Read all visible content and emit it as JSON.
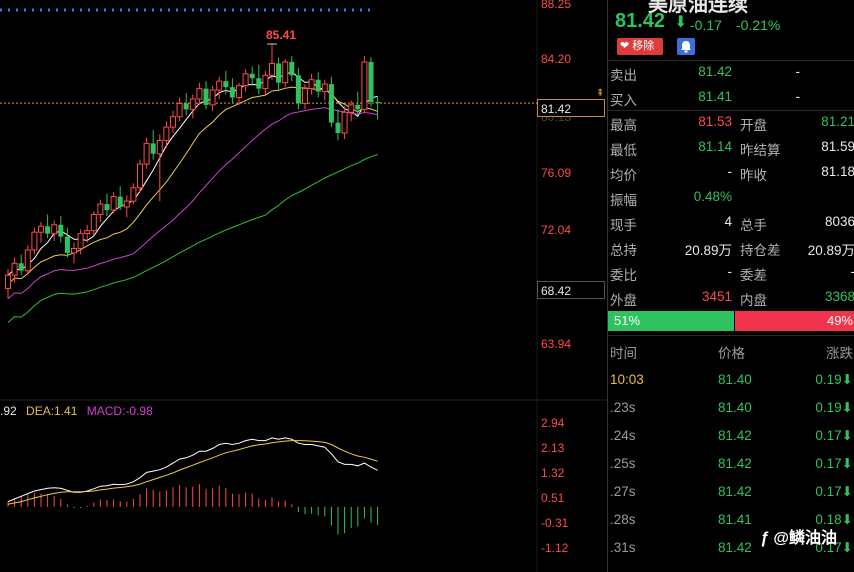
{
  "chart_data": {
    "type": "candlestick",
    "price_axis_ticks": [
      "88.25",
      "84.20",
      "80.15",
      "76.09",
      "72.04",
      "63.94"
    ],
    "price_axis_bottom_box": "68.42",
    "current_price_box": "81.42",
    "high_annotation": "85.41",
    "ylim": [
      61.5,
      88.25
    ],
    "candles": [
      {
        "o": 68.9,
        "h": 70.2,
        "l": 68.2,
        "c": 69.8
      },
      {
        "o": 69.8,
        "h": 71.0,
        "l": 69.3,
        "c": 70.6
      },
      {
        "o": 70.6,
        "h": 71.2,
        "l": 69.8,
        "c": 70.1
      },
      {
        "o": 70.1,
        "h": 71.8,
        "l": 69.9,
        "c": 71.5
      },
      {
        "o": 71.5,
        "h": 73.0,
        "l": 71.2,
        "c": 72.7
      },
      {
        "o": 72.7,
        "h": 73.4,
        "l": 72.0,
        "c": 73.1
      },
      {
        "o": 73.1,
        "h": 73.9,
        "l": 72.3,
        "c": 72.6
      },
      {
        "o": 72.6,
        "h": 73.5,
        "l": 72.1,
        "c": 73.2
      },
      {
        "o": 73.2,
        "h": 73.8,
        "l": 72.0,
        "c": 72.4
      },
      {
        "o": 72.4,
        "h": 73.0,
        "l": 71.0,
        "c": 71.3
      },
      {
        "o": 71.3,
        "h": 72.0,
        "l": 70.6,
        "c": 71.6
      },
      {
        "o": 71.6,
        "h": 72.9,
        "l": 71.2,
        "c": 72.6
      },
      {
        "o": 72.6,
        "h": 73.2,
        "l": 72.0,
        "c": 72.8
      },
      {
        "o": 72.8,
        "h": 74.1,
        "l": 72.5,
        "c": 73.9
      },
      {
        "o": 73.9,
        "h": 74.9,
        "l": 73.4,
        "c": 74.6
      },
      {
        "o": 74.6,
        "h": 75.3,
        "l": 73.8,
        "c": 74.2
      },
      {
        "o": 74.2,
        "h": 75.4,
        "l": 74.0,
        "c": 75.1
      },
      {
        "o": 75.1,
        "h": 75.8,
        "l": 74.2,
        "c": 74.4
      },
      {
        "o": 74.4,
        "h": 75.2,
        "l": 73.7,
        "c": 74.8
      },
      {
        "o": 74.8,
        "h": 76.0,
        "l": 74.6,
        "c": 75.7
      },
      {
        "o": 75.7,
        "h": 77.6,
        "l": 75.4,
        "c": 77.3
      },
      {
        "o": 77.3,
        "h": 79.1,
        "l": 77.0,
        "c": 78.7
      },
      {
        "o": 78.7,
        "h": 79.6,
        "l": 77.6,
        "c": 78.0
      },
      {
        "o": 78.0,
        "h": 79.3,
        "l": 74.8,
        "c": 78.9
      },
      {
        "o": 78.9,
        "h": 80.2,
        "l": 78.4,
        "c": 79.8
      },
      {
        "o": 79.8,
        "h": 80.9,
        "l": 79.4,
        "c": 80.5
      },
      {
        "o": 80.5,
        "h": 81.8,
        "l": 80.2,
        "c": 81.4
      },
      {
        "o": 81.4,
        "h": 82.1,
        "l": 80.6,
        "c": 81.0
      },
      {
        "o": 81.0,
        "h": 82.0,
        "l": 80.4,
        "c": 81.7
      },
      {
        "o": 81.7,
        "h": 82.8,
        "l": 81.3,
        "c": 82.4
      },
      {
        "o": 82.4,
        "h": 82.9,
        "l": 81.0,
        "c": 81.3
      },
      {
        "o": 81.3,
        "h": 82.6,
        "l": 80.9,
        "c": 82.3
      },
      {
        "o": 82.3,
        "h": 83.2,
        "l": 81.7,
        "c": 82.9
      },
      {
        "o": 82.9,
        "h": 83.6,
        "l": 82.0,
        "c": 82.5
      },
      {
        "o": 82.5,
        "h": 83.1,
        "l": 81.4,
        "c": 81.8
      },
      {
        "o": 81.8,
        "h": 82.8,
        "l": 81.3,
        "c": 82.6
      },
      {
        "o": 82.6,
        "h": 83.7,
        "l": 82.2,
        "c": 83.4
      },
      {
        "o": 83.4,
        "h": 83.9,
        "l": 82.6,
        "c": 83.1
      },
      {
        "o": 83.1,
        "h": 84.0,
        "l": 82.0,
        "c": 82.4
      },
      {
        "o": 82.4,
        "h": 83.6,
        "l": 81.9,
        "c": 83.3
      },
      {
        "o": 83.3,
        "h": 85.41,
        "l": 83.0,
        "c": 84.1
      },
      {
        "o": 84.1,
        "h": 84.5,
        "l": 82.3,
        "c": 82.8
      },
      {
        "o": 82.8,
        "h": 84.4,
        "l": 82.5,
        "c": 84.2
      },
      {
        "o": 84.2,
        "h": 84.6,
        "l": 82.9,
        "c": 83.3
      },
      {
        "o": 83.3,
        "h": 83.8,
        "l": 81.0,
        "c": 81.4
      },
      {
        "o": 81.4,
        "h": 82.7,
        "l": 81.0,
        "c": 82.4
      },
      {
        "o": 82.4,
        "h": 83.4,
        "l": 82.0,
        "c": 83.0
      },
      {
        "o": 83.0,
        "h": 83.5,
        "l": 81.8,
        "c": 82.2
      },
      {
        "o": 82.2,
        "h": 83.0,
        "l": 81.6,
        "c": 82.7
      },
      {
        "o": 82.7,
        "h": 83.2,
        "l": 79.8,
        "c": 80.1
      },
      {
        "o": 80.1,
        "h": 81.0,
        "l": 78.9,
        "c": 79.4
      },
      {
        "o": 79.4,
        "h": 81.2,
        "l": 79.0,
        "c": 80.8
      },
      {
        "o": 80.8,
        "h": 81.6,
        "l": 80.2,
        "c": 81.3
      },
      {
        "o": 81.3,
        "h": 82.2,
        "l": 80.6,
        "c": 81.0
      },
      {
        "o": 81.0,
        "h": 84.6,
        "l": 80.8,
        "c": 84.2
      },
      {
        "o": 84.2,
        "h": 84.5,
        "l": 81.2,
        "c": 81.5
      },
      {
        "o": 81.5,
        "h": 81.9,
        "l": 80.3,
        "c": 81.42
      }
    ],
    "macd_axis_ticks": [
      "2.94",
      "2.13",
      "1.32",
      "0.51",
      "-0.31",
      "-1.12"
    ],
    "macd_ylim": [
      -1.55,
      3.2
    ],
    "macd_legend": {
      "dif": ".92",
      "dea": "DEA:1.41",
      "macd": "MACD:-0.98"
    },
    "dif": [
      0.2,
      0.3,
      0.4,
      0.5,
      0.6,
      0.65,
      0.7,
      0.72,
      0.7,
      0.62,
      0.55,
      0.55,
      0.6,
      0.68,
      0.78,
      0.8,
      0.85,
      0.84,
      0.86,
      0.95,
      1.1,
      1.3,
      1.35,
      1.4,
      1.5,
      1.65,
      1.8,
      1.85,
      1.95,
      2.1,
      2.1,
      2.2,
      2.35,
      2.4,
      2.35,
      2.4,
      2.5,
      2.55,
      2.5,
      2.5,
      2.6,
      2.55,
      2.6,
      2.55,
      2.4,
      2.35,
      2.35,
      2.3,
      2.25,
      2.0,
      1.7,
      1.6,
      1.6,
      1.55,
      1.65,
      1.5,
      1.38
    ],
    "dea": [
      0.1,
      0.15,
      0.2,
      0.27,
      0.34,
      0.4,
      0.46,
      0.51,
      0.55,
      0.57,
      0.57,
      0.57,
      0.58,
      0.6,
      0.64,
      0.67,
      0.71,
      0.73,
      0.76,
      0.8,
      0.86,
      0.95,
      1.03,
      1.11,
      1.19,
      1.28,
      1.39,
      1.48,
      1.57,
      1.67,
      1.76,
      1.85,
      1.95,
      2.04,
      2.1,
      2.16,
      2.23,
      2.3,
      2.34,
      2.37,
      2.42,
      2.45,
      2.48,
      2.5,
      2.5,
      2.49,
      2.48,
      2.46,
      2.43,
      2.35,
      2.22,
      2.1,
      2.0,
      1.92,
      1.87,
      1.8,
      1.72
    ],
    "macd": [
      0.2,
      0.3,
      0.4,
      0.46,
      0.52,
      0.5,
      0.48,
      0.42,
      0.3,
      0.1,
      -0.04,
      -0.04,
      0.04,
      0.16,
      0.28,
      0.26,
      0.28,
      0.22,
      0.2,
      0.3,
      0.48,
      0.7,
      0.64,
      0.58,
      0.62,
      0.74,
      0.82,
      0.74,
      0.76,
      0.86,
      0.68,
      0.7,
      0.8,
      0.72,
      0.5,
      0.48,
      0.54,
      0.5,
      0.32,
      0.26,
      0.36,
      0.2,
      0.24,
      0.1,
      -0.2,
      -0.28,
      -0.26,
      -0.32,
      -0.36,
      -0.7,
      -1.04,
      -1.0,
      -0.8,
      -0.74,
      -0.44,
      -0.6,
      -0.68
    ],
    "ma_colors": {
      "ma5": "#ffffff",
      "ma10": "#e8d040",
      "ma20": "#d040d0",
      "ma60": "#30c030"
    }
  },
  "quote": {
    "name_partial": "美原油连续",
    "price": "81.42",
    "arrow": "⬇",
    "change": "-0.17",
    "change_pct": "-0.21%",
    "remove_label": "移除",
    "sell_label": "卖出",
    "sell_price": "81.42",
    "sell_vol": "-",
    "buy_label": "买入",
    "buy_price": "81.41",
    "buy_vol": "-",
    "rows": [
      {
        "k1": "最高",
        "v1": "81.53",
        "c1": "red",
        "k2": "开盘",
        "v2": "81.21",
        "c2": "green"
      },
      {
        "k1": "最低",
        "v1": "81.14",
        "c1": "green",
        "k2": "昨结算",
        "v2": "81.59",
        "c2": "white"
      },
      {
        "k1": "均价",
        "v1": "-",
        "c1": "white",
        "k2": "昨收",
        "v2": "81.18",
        "c2": "white"
      },
      {
        "k1": "振幅",
        "v1": "0.48%",
        "c1": "green",
        "k2": "",
        "v2": "",
        "c2": "white"
      },
      {
        "k1": "现手",
        "v1": "4",
        "c1": "white",
        "k2": "总手",
        "v2": "8036",
        "c2": "white"
      },
      {
        "k1": "总持",
        "v1": "20.89万",
        "c1": "white",
        "k2": "持仓差",
        "v2": "20.89万",
        "c2": "white"
      },
      {
        "k1": "委比",
        "v1": "-",
        "c1": "white",
        "k2": "委差",
        "v2": "-",
        "c2": "white"
      },
      {
        "k1": "外盘",
        "v1": "3451",
        "c1": "red",
        "k2": "内盘",
        "v2": "3368",
        "c2": "green"
      }
    ],
    "buy_ratio": "51%",
    "sell_ratio": "49%",
    "buy_ratio_value": 0.51,
    "ticks_header": {
      "time": "时间",
      "price": "价格",
      "change": "涨跌"
    },
    "ticks": [
      {
        "t": "10:03",
        "p": "81.40",
        "c": "0.19⬇",
        "tc": "yellow"
      },
      {
        "t": ".23s",
        "p": "81.40",
        "c": "0.19⬇",
        "tc": "gray"
      },
      {
        "t": ".24s",
        "p": "81.42",
        "c": "0.17⬇",
        "tc": "gray"
      },
      {
        "t": ".25s",
        "p": "81.42",
        "c": "0.17⬇",
        "tc": "gray"
      },
      {
        "t": ".27s",
        "p": "81.42",
        "c": "0.17⬇",
        "tc": "gray"
      },
      {
        "t": ".28s",
        "p": "81.41",
        "c": "0.18⬇",
        "tc": "gray"
      },
      {
        "t": ".31s",
        "p": "81.42",
        "c": "0.17⬇",
        "tc": "gray"
      }
    ]
  },
  "watermark": "@鳞油油"
}
